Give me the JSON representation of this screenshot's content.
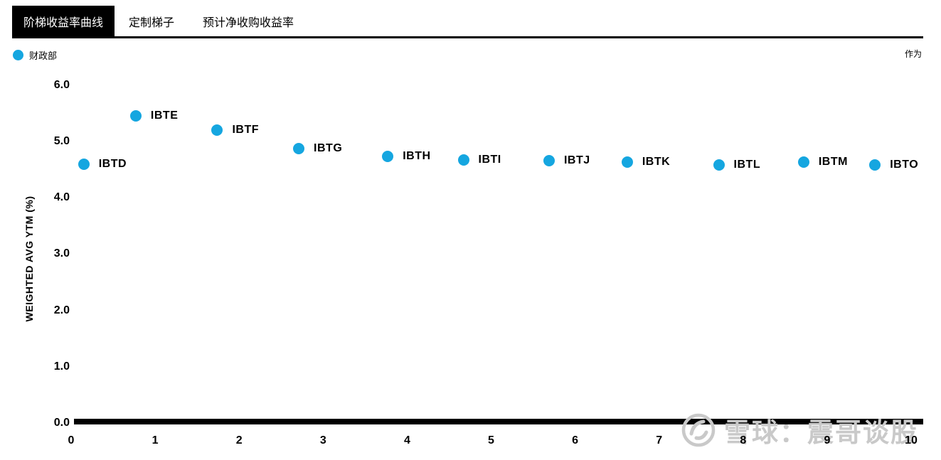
{
  "tabs": [
    {
      "label": "阶梯收益率曲线",
      "active": true
    },
    {
      "label": "定制梯子",
      "active": false
    },
    {
      "label": "预计净收购收益率",
      "active": false
    }
  ],
  "legend": {
    "label": "财政部",
    "dot_color": "#15a6e0"
  },
  "as_of_label": "作为",
  "watermark": {
    "text": "雪球：震哥谈股"
  },
  "chart_data": {
    "type": "scatter",
    "title": "",
    "xlabel": "",
    "ylabel": "WEIGHTED AVG YTM (%)",
    "xlim": [
      0,
      10
    ],
    "ylim": [
      0,
      6
    ],
    "x_ticks": [
      "0",
      "1",
      "2",
      "3",
      "4",
      "5",
      "6",
      "7",
      "8",
      "9",
      "10"
    ],
    "y_ticks": [
      "0.0",
      "1.0",
      "2.0",
      "3.0",
      "4.0",
      "5.0",
      "6.0"
    ],
    "grid": false,
    "legend_position": "top-left",
    "series": [
      {
        "name": "财政部",
        "color": "#15a6e0",
        "points": [
          {
            "label": "IBTD",
            "x": 0.15,
            "y": 4.6
          },
          {
            "label": "IBTE",
            "x": 0.77,
            "y": 5.46
          },
          {
            "label": "IBTF",
            "x": 1.74,
            "y": 5.2
          },
          {
            "label": "IBTG",
            "x": 2.71,
            "y": 4.88
          },
          {
            "label": "IBTH",
            "x": 3.77,
            "y": 4.74
          },
          {
            "label": "IBTI",
            "x": 4.67,
            "y": 4.67
          },
          {
            "label": "IBTJ",
            "x": 5.69,
            "y": 4.66
          },
          {
            "label": "IBTK",
            "x": 6.62,
            "y": 4.64
          },
          {
            "label": "IBTL",
            "x": 7.71,
            "y": 4.59
          },
          {
            "label": "IBTM",
            "x": 8.72,
            "y": 4.64
          },
          {
            "label": "IBTO",
            "x": 9.57,
            "y": 4.59
          }
        ]
      }
    ]
  }
}
